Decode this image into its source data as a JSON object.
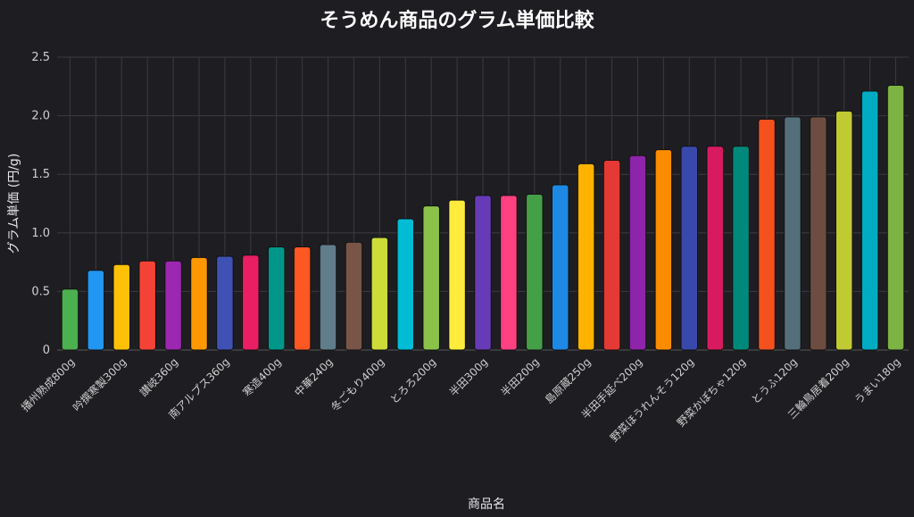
{
  "chart_data": {
    "type": "bar",
    "title": "そうめん商品のグラム単価比較",
    "xlabel": "商品名",
    "ylabel": "グラム単価 (円/g)",
    "ylim": [
      0,
      2.5
    ],
    "yticks": [
      "0",
      "0.5",
      "1.0",
      "1.5",
      "2.0",
      "2.5"
    ],
    "ytick_values": [
      0,
      0.5,
      1.0,
      1.5,
      2.0,
      2.5
    ],
    "grid": true,
    "categories": [
      "播州熟成800g",
      "",
      "吟撰寒製300g",
      "",
      "讃岐360g",
      "",
      "南アルプス360g",
      "",
      "寒造400g",
      "",
      "中華240g",
      "",
      "冬ごもり400g",
      "",
      "とろろ200g",
      "",
      "半田300g",
      "",
      "半田200g",
      "",
      "島原蔵250g",
      "",
      "半田手延べ200g",
      "",
      "野菜ほうれんそう120g",
      "",
      "野菜かぼちゃ120g",
      "",
      "とうふ120g",
      "",
      "三輪鳥居着200g",
      "",
      "うまい180g"
    ],
    "values": [
      0.52,
      0.68,
      0.73,
      0.76,
      0.76,
      0.79,
      0.8,
      0.81,
      0.88,
      0.88,
      0.9,
      0.92,
      0.96,
      1.12,
      1.23,
      1.28,
      1.32,
      1.32,
      1.33,
      1.41,
      1.59,
      1.62,
      1.66,
      1.71,
      1.74,
      1.74,
      1.74,
      1.97,
      1.99,
      1.99,
      2.04,
      2.21,
      2.26
    ],
    "colors": [
      "#4caf50",
      "#2196f3",
      "#ffc107",
      "#f44336",
      "#9c27b0",
      "#ff9800",
      "#3f51b5",
      "#e91e63",
      "#009688",
      "#ff5722",
      "#607d8b",
      "#795548",
      "#cddc39",
      "#00bcd4",
      "#8bc34a",
      "#ffeb3b",
      "#673ab7",
      "#ff4081",
      "#43a047",
      "#1e88e5",
      "#ffb300",
      "#e53935",
      "#8e24aa",
      "#fb8c00",
      "#3949ab",
      "#d81b60",
      "#00897b",
      "#f4511e",
      "#546e7a",
      "#6d4c41",
      "#c0ca33",
      "#00acc1",
      "#7cb342"
    ]
  }
}
